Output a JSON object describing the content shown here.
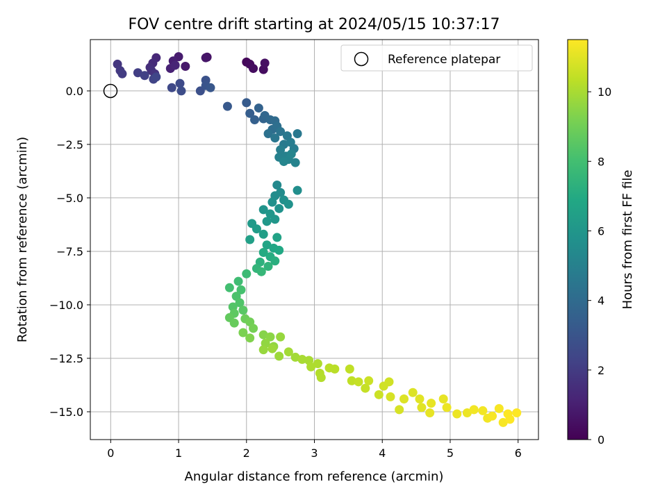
{
  "chart_data": {
    "type": "scatter",
    "title": "FOV centre drift starting at 2024/05/15 10:37:17",
    "xlabel": "Angular distance from reference (arcmin)",
    "ylabel": "Rotation from reference (arcmin)",
    "xlim": [
      -0.3,
      6.3
    ],
    "ylim": [
      -16.3,
      2.4
    ],
    "xticks": [
      0,
      1,
      2,
      3,
      4,
      5,
      6
    ],
    "xtick_labels": [
      "0",
      "1",
      "2",
      "3",
      "4",
      "5",
      "6"
    ],
    "yticks": [
      0.0,
      -2.5,
      -5.0,
      -7.5,
      -10.0,
      -12.5,
      -15.0
    ],
    "ytick_labels": [
      "0.0",
      "−2.5",
      "−5.0",
      "−7.5",
      "−10.0",
      "−12.5",
      "−15.0"
    ],
    "grid": true,
    "legend": {
      "position": "top-right",
      "entries": [
        {
          "label": "Reference platepar",
          "marker": "open-circle"
        }
      ]
    },
    "reference_point": {
      "x": 0.0,
      "y": 0.0
    },
    "colorbar": {
      "label": "Hours from first FF file",
      "colormap": "viridis",
      "range": [
        0,
        11.5
      ],
      "ticks": [
        0,
        2,
        4,
        6,
        8,
        10
      ],
      "tick_labels": [
        "0",
        "2",
        "4",
        "6",
        "8",
        "10"
      ]
    },
    "points": [
      {
        "x": 2.0,
        "y": 1.35,
        "h": 0.2
      },
      {
        "x": 2.05,
        "y": 1.25,
        "h": 0.3
      },
      {
        "x": 2.1,
        "y": 1.05,
        "h": 0.4
      },
      {
        "x": 2.25,
        "y": 1.0,
        "h": 0.4
      },
      {
        "x": 2.27,
        "y": 1.3,
        "h": 0.5
      },
      {
        "x": 1.42,
        "y": 1.58,
        "h": 0.6
      },
      {
        "x": 1.4,
        "y": 1.55,
        "h": 0.7
      },
      {
        "x": 1.1,
        "y": 1.15,
        "h": 0.8
      },
      {
        "x": 1.0,
        "y": 1.6,
        "h": 0.9
      },
      {
        "x": 0.92,
        "y": 1.4,
        "h": 1.0
      },
      {
        "x": 0.88,
        "y": 1.05,
        "h": 1.1
      },
      {
        "x": 0.95,
        "y": 1.2,
        "h": 1.2
      },
      {
        "x": 0.67,
        "y": 1.55,
        "h": 1.3
      },
      {
        "x": 0.62,
        "y": 1.3,
        "h": 1.4
      },
      {
        "x": 0.58,
        "y": 1.1,
        "h": 1.5
      },
      {
        "x": 0.6,
        "y": 0.95,
        "h": 1.6
      },
      {
        "x": 0.65,
        "y": 0.8,
        "h": 1.7
      },
      {
        "x": 0.1,
        "y": 1.25,
        "h": 1.8
      },
      {
        "x": 0.14,
        "y": 0.95,
        "h": 1.9
      },
      {
        "x": 0.17,
        "y": 0.8,
        "h": 2.0
      },
      {
        "x": 0.4,
        "y": 0.85,
        "h": 2.1
      },
      {
        "x": 0.5,
        "y": 0.72,
        "h": 2.2
      },
      {
        "x": 0.63,
        "y": 0.55,
        "h": 2.3
      },
      {
        "x": 0.67,
        "y": 0.65,
        "h": 2.4
      },
      {
        "x": 0.9,
        "y": 0.15,
        "h": 2.5
      },
      {
        "x": 1.02,
        "y": 0.35,
        "h": 2.6
      },
      {
        "x": 1.04,
        "y": 0.0,
        "h": 2.7
      },
      {
        "x": 1.32,
        "y": 0.0,
        "h": 2.8
      },
      {
        "x": 1.4,
        "y": 0.5,
        "h": 2.9
      },
      {
        "x": 1.4,
        "y": 0.25,
        "h": 3.0
      },
      {
        "x": 1.47,
        "y": 0.15,
        "h": 3.1
      },
      {
        "x": 1.72,
        "y": -0.72,
        "h": 3.2
      },
      {
        "x": 2.0,
        "y": -0.55,
        "h": 3.3
      },
      {
        "x": 2.05,
        "y": -1.05,
        "h": 3.4
      },
      {
        "x": 2.12,
        "y": -1.35,
        "h": 3.5
      },
      {
        "x": 2.18,
        "y": -0.8,
        "h": 3.6
      },
      {
        "x": 2.25,
        "y": -1.3,
        "h": 3.7
      },
      {
        "x": 2.27,
        "y": -1.15,
        "h": 3.8
      },
      {
        "x": 2.35,
        "y": -1.35,
        "h": 3.9
      },
      {
        "x": 2.42,
        "y": -1.4,
        "h": 4.0
      },
      {
        "x": 2.38,
        "y": -1.8,
        "h": 4.1
      },
      {
        "x": 2.45,
        "y": -1.65,
        "h": 4.2
      },
      {
        "x": 2.32,
        "y": -2.0,
        "h": 4.3
      },
      {
        "x": 2.5,
        "y": -1.9,
        "h": 4.4
      },
      {
        "x": 2.42,
        "y": -2.2,
        "h": 4.5
      },
      {
        "x": 2.6,
        "y": -2.1,
        "h": 4.6
      },
      {
        "x": 2.75,
        "y": -2.0,
        "h": 4.6
      },
      {
        "x": 2.55,
        "y": -2.5,
        "h": 4.7
      },
      {
        "x": 2.65,
        "y": -2.4,
        "h": 4.8
      },
      {
        "x": 2.7,
        "y": -2.7,
        "h": 4.8
      },
      {
        "x": 2.5,
        "y": -2.75,
        "h": 4.9
      },
      {
        "x": 2.48,
        "y": -3.1,
        "h": 5.0
      },
      {
        "x": 2.58,
        "y": -3.05,
        "h": 5.0
      },
      {
        "x": 2.62,
        "y": -3.2,
        "h": 5.1
      },
      {
        "x": 2.72,
        "y": -3.35,
        "h": 5.1
      },
      {
        "x": 2.55,
        "y": -3.3,
        "h": 5.2
      },
      {
        "x": 2.66,
        "y": -2.95,
        "h": 5.2
      },
      {
        "x": 2.45,
        "y": -4.4,
        "h": 5.4
      },
      {
        "x": 2.42,
        "y": -4.9,
        "h": 5.5
      },
      {
        "x": 2.5,
        "y": -4.75,
        "h": 5.5
      },
      {
        "x": 2.75,
        "y": -4.65,
        "h": 5.6
      },
      {
        "x": 2.38,
        "y": -5.2,
        "h": 5.7
      },
      {
        "x": 2.55,
        "y": -5.1,
        "h": 5.7
      },
      {
        "x": 2.62,
        "y": -5.3,
        "h": 5.8
      },
      {
        "x": 2.48,
        "y": -5.5,
        "h": 5.8
      },
      {
        "x": 2.25,
        "y": -5.55,
        "h": 5.9
      },
      {
        "x": 2.35,
        "y": -5.75,
        "h": 6.0
      },
      {
        "x": 2.42,
        "y": -6.0,
        "h": 6.0
      },
      {
        "x": 2.3,
        "y": -6.1,
        "h": 6.1
      },
      {
        "x": 2.08,
        "y": -6.2,
        "h": 6.2
      },
      {
        "x": 2.15,
        "y": -6.45,
        "h": 6.3
      },
      {
        "x": 2.25,
        "y": -6.7,
        "h": 6.4
      },
      {
        "x": 2.05,
        "y": -6.95,
        "h": 6.5
      },
      {
        "x": 2.45,
        "y": -6.85,
        "h": 6.6
      },
      {
        "x": 2.3,
        "y": -7.2,
        "h": 6.7
      },
      {
        "x": 2.4,
        "y": -7.35,
        "h": 6.8
      },
      {
        "x": 2.48,
        "y": -7.45,
        "h": 6.9
      },
      {
        "x": 2.25,
        "y": -7.55,
        "h": 7.0
      },
      {
        "x": 2.35,
        "y": -7.75,
        "h": 7.1
      },
      {
        "x": 2.42,
        "y": -7.95,
        "h": 7.2
      },
      {
        "x": 2.2,
        "y": -8.0,
        "h": 7.3
      },
      {
        "x": 2.32,
        "y": -8.2,
        "h": 7.4
      },
      {
        "x": 2.15,
        "y": -8.3,
        "h": 7.5
      },
      {
        "x": 2.22,
        "y": -8.45,
        "h": 7.6
      },
      {
        "x": 2.0,
        "y": -8.55,
        "h": 7.8
      },
      {
        "x": 1.88,
        "y": -8.9,
        "h": 7.9
      },
      {
        "x": 1.75,
        "y": -9.2,
        "h": 8.0
      },
      {
        "x": 1.92,
        "y": -9.3,
        "h": 8.1
      },
      {
        "x": 1.85,
        "y": -9.6,
        "h": 8.2
      },
      {
        "x": 1.9,
        "y": -9.9,
        "h": 8.3
      },
      {
        "x": 1.8,
        "y": -10.1,
        "h": 8.4
      },
      {
        "x": 1.95,
        "y": -10.25,
        "h": 8.5
      },
      {
        "x": 1.82,
        "y": -10.4,
        "h": 8.6
      },
      {
        "x": 1.75,
        "y": -10.6,
        "h": 8.7
      },
      {
        "x": 1.82,
        "y": -10.85,
        "h": 8.8
      },
      {
        "x": 1.98,
        "y": -10.65,
        "h": 8.9
      },
      {
        "x": 2.05,
        "y": -10.8,
        "h": 9.0
      },
      {
        "x": 2.1,
        "y": -11.1,
        "h": 9.1
      },
      {
        "x": 1.95,
        "y": -11.3,
        "h": 9.2
      },
      {
        "x": 2.05,
        "y": -11.55,
        "h": 9.3
      },
      {
        "x": 2.25,
        "y": -11.4,
        "h": 9.4
      },
      {
        "x": 2.35,
        "y": -11.5,
        "h": 9.5
      },
      {
        "x": 2.28,
        "y": -11.8,
        "h": 9.6
      },
      {
        "x": 2.4,
        "y": -11.95,
        "h": 9.6
      },
      {
        "x": 2.5,
        "y": -11.5,
        "h": 9.7
      },
      {
        "x": 2.25,
        "y": -12.1,
        "h": 9.7
      },
      {
        "x": 2.38,
        "y": -12.05,
        "h": 9.8
      },
      {
        "x": 2.48,
        "y": -12.4,
        "h": 9.8
      },
      {
        "x": 2.62,
        "y": -12.2,
        "h": 9.9
      },
      {
        "x": 2.72,
        "y": -12.45,
        "h": 9.9
      },
      {
        "x": 2.82,
        "y": -12.55,
        "h": 10.0
      },
      {
        "x": 2.92,
        "y": -12.6,
        "h": 10.0
      },
      {
        "x": 2.95,
        "y": -12.9,
        "h": 10.1
      },
      {
        "x": 3.05,
        "y": -12.75,
        "h": 10.1
      },
      {
        "x": 3.08,
        "y": -13.2,
        "h": 10.2
      },
      {
        "x": 3.1,
        "y": -13.4,
        "h": 10.2
      },
      {
        "x": 3.22,
        "y": -12.95,
        "h": 10.3
      },
      {
        "x": 3.3,
        "y": -13.0,
        "h": 10.3
      },
      {
        "x": 3.52,
        "y": -13.0,
        "h": 10.4
      },
      {
        "x": 3.55,
        "y": -13.55,
        "h": 10.4
      },
      {
        "x": 3.65,
        "y": -13.6,
        "h": 10.5
      },
      {
        "x": 3.75,
        "y": -13.9,
        "h": 10.5
      },
      {
        "x": 3.8,
        "y": -13.55,
        "h": 10.6
      },
      {
        "x": 3.95,
        "y": -14.2,
        "h": 10.6
      },
      {
        "x": 4.02,
        "y": -13.8,
        "h": 10.7
      },
      {
        "x": 4.1,
        "y": -13.6,
        "h": 10.7
      },
      {
        "x": 4.12,
        "y": -14.3,
        "h": 10.8
      },
      {
        "x": 4.25,
        "y": -14.9,
        "h": 10.8
      },
      {
        "x": 4.32,
        "y": -14.4,
        "h": 10.9
      },
      {
        "x": 4.45,
        "y": -14.1,
        "h": 10.9
      },
      {
        "x": 4.55,
        "y": -14.4,
        "h": 11.0
      },
      {
        "x": 4.58,
        "y": -14.8,
        "h": 11.0
      },
      {
        "x": 4.7,
        "y": -15.05,
        "h": 11.1
      },
      {
        "x": 4.72,
        "y": -14.6,
        "h": 11.1
      },
      {
        "x": 4.9,
        "y": -14.4,
        "h": 11.1
      },
      {
        "x": 4.95,
        "y": -14.8,
        "h": 11.2
      },
      {
        "x": 5.1,
        "y": -15.1,
        "h": 11.2
      },
      {
        "x": 5.25,
        "y": -15.05,
        "h": 11.2
      },
      {
        "x": 5.35,
        "y": -14.9,
        "h": 11.3
      },
      {
        "x": 5.48,
        "y": -14.95,
        "h": 11.3
      },
      {
        "x": 5.55,
        "y": -15.3,
        "h": 11.3
      },
      {
        "x": 5.62,
        "y": -15.2,
        "h": 11.4
      },
      {
        "x": 5.72,
        "y": -14.85,
        "h": 11.4
      },
      {
        "x": 5.78,
        "y": -15.5,
        "h": 11.4
      },
      {
        "x": 5.85,
        "y": -15.1,
        "h": 11.5
      },
      {
        "x": 5.88,
        "y": -15.35,
        "h": 11.5
      },
      {
        "x": 5.98,
        "y": -15.05,
        "h": 11.5
      }
    ]
  }
}
